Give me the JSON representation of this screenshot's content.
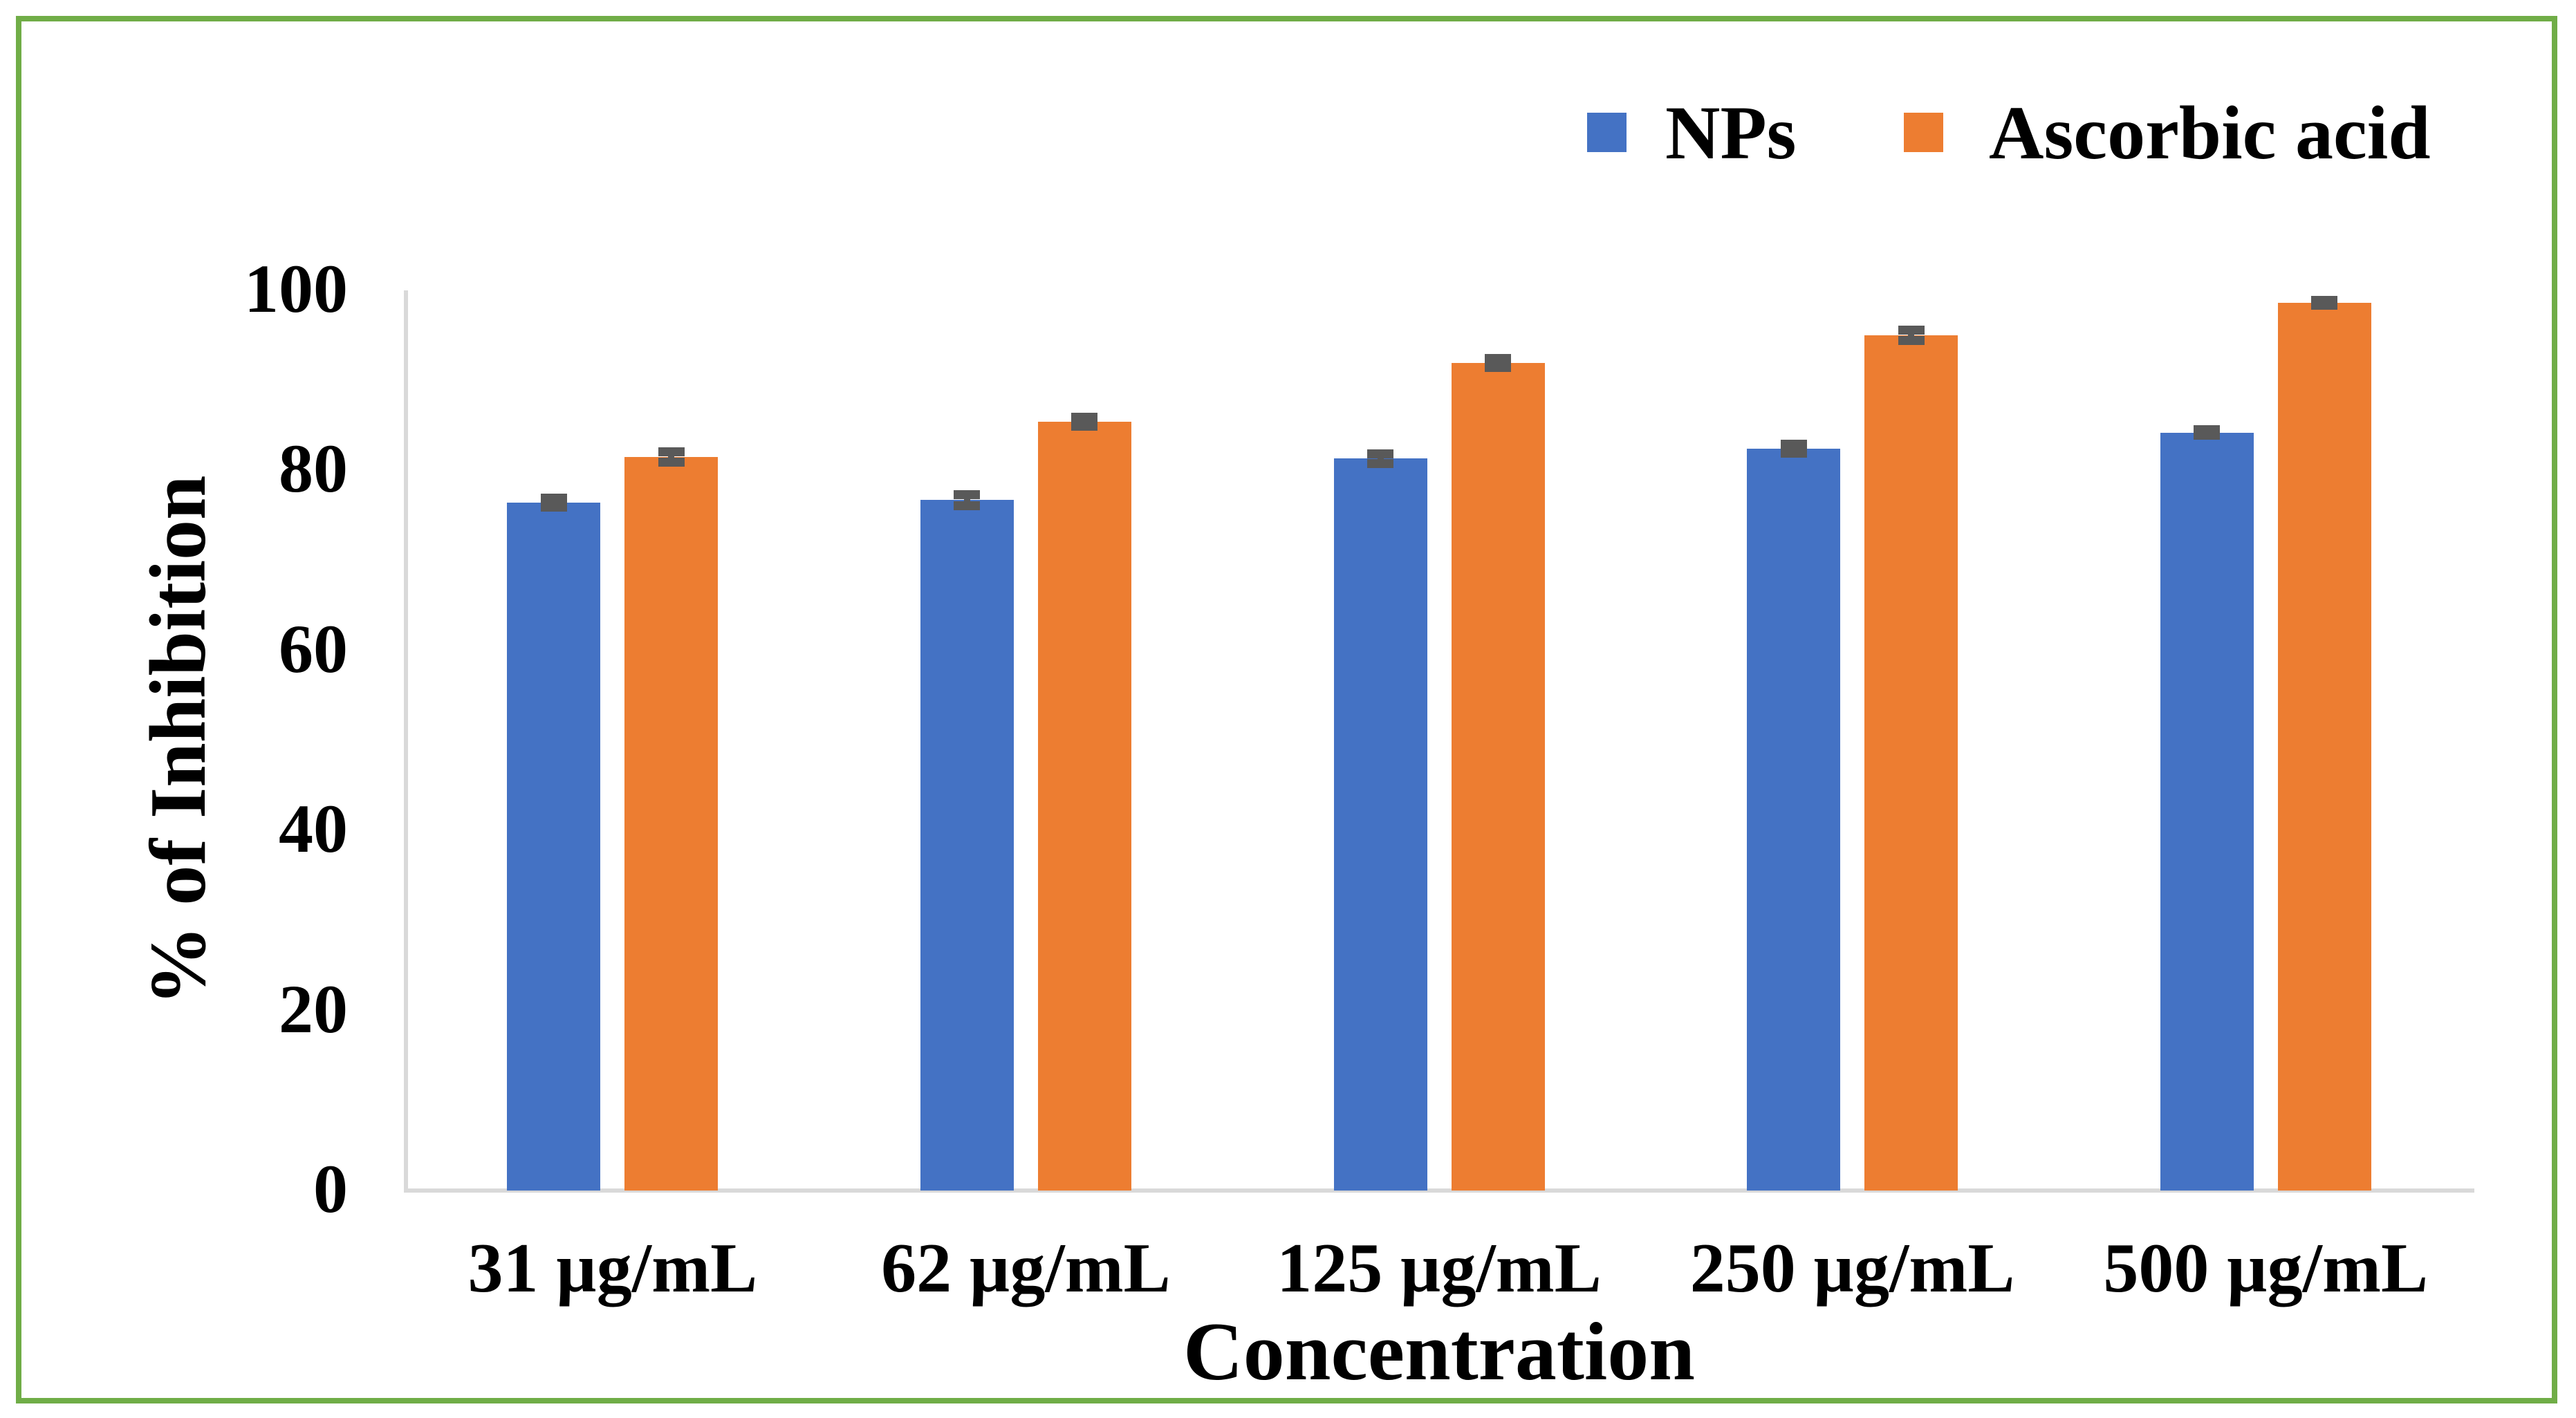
{
  "chart_data": {
    "type": "bar",
    "title": "",
    "xlabel": "Concentration",
    "ylabel": "% of Inhibition",
    "categories": [
      "31 µg/mL",
      "62 µg/mL",
      "125 µg/mL",
      "250 µg/mL",
      "500 µg/mL"
    ],
    "series": [
      {
        "name": "NPs",
        "color": "#4472C4",
        "values": [
          76.4,
          76.7,
          81.3,
          82.4,
          84.2
        ],
        "errors": [
          0.5,
          0.6,
          0.55,
          0.5,
          0.3
        ]
      },
      {
        "name": "Ascorbic acid",
        "color": "#ED7D31",
        "values": [
          81.5,
          85.4,
          91.9,
          95.0,
          98.6
        ],
        "errors": [
          0.55,
          0.5,
          0.5,
          0.55,
          0.25
        ]
      }
    ],
    "yticks": [
      0,
      20,
      40,
      60,
      80,
      100
    ],
    "ylim": [
      0,
      100
    ],
    "grid": false,
    "legend_position": "top-right",
    "error_bar_color": "#595959",
    "axis_line_color": "#D9D9D9",
    "border_color": "#70AD47",
    "background": "#FFFFFF"
  }
}
